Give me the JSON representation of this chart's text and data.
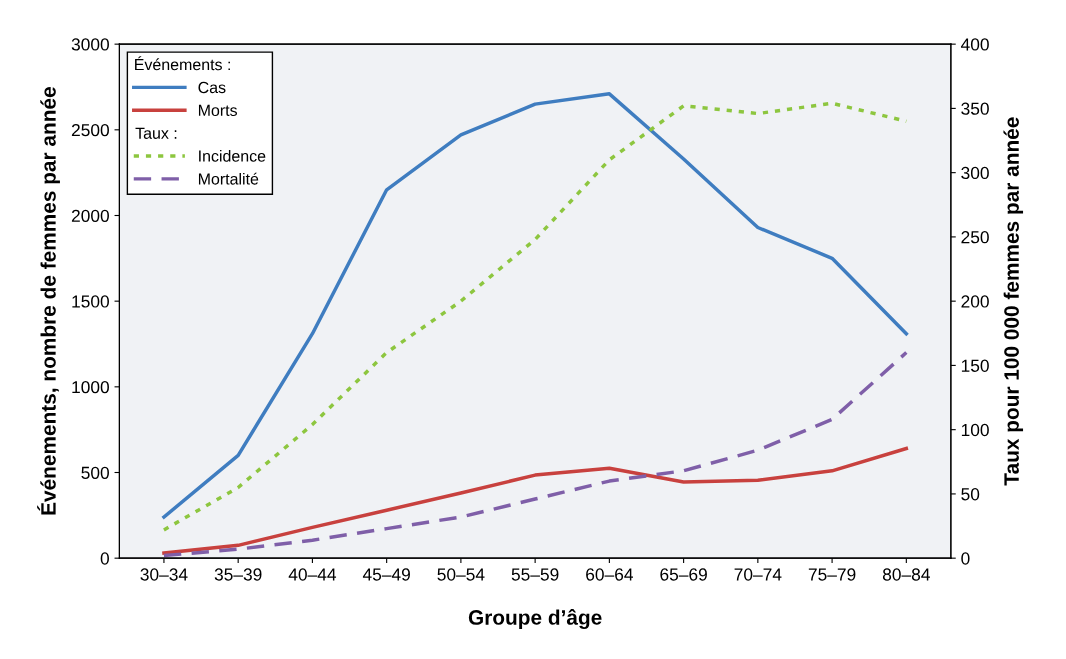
{
  "chart_data": {
    "type": "line",
    "xlabel": "Groupe d’âge",
    "ylabel": "Événements, nombre de femmes par année",
    "y2label": "Taux pour 100 000 femmes par année",
    "categories": [
      "30–34",
      "35–39",
      "40–44",
      "45–49",
      "50–54",
      "55–59",
      "60–64",
      "65–69",
      "70–74",
      "75–79",
      "80–84"
    ],
    "series": [
      {
        "name": "Cas",
        "color": "#3f7dc0",
        "line_style": "solid",
        "values": [
          240,
          600,
          1310,
          2150,
          2470,
          2650,
          2710,
          2330,
          1930,
          1750,
          1310
        ]
      },
      {
        "name": "Morts",
        "color": "#c8413e",
        "line_style": "solid",
        "values": [
          30,
          75,
          180,
          280,
          380,
          485,
          525,
          445,
          455,
          510,
          640
        ]
      },
      {
        "name": "Incidence",
        "color": "#8dc63f",
        "line_style": "dotted",
        "axis": "y2",
        "values": [
          22,
          55,
          104,
          160,
          200,
          248,
          310,
          352,
          346,
          354,
          340
        ]
      },
      {
        "name": "Mortalité",
        "color": "#7f5fa8",
        "line_style": "dashed",
        "axis": "y2",
        "values": [
          2,
          7,
          14,
          23,
          32,
          46,
          60,
          68,
          84,
          108,
          160
        ]
      }
    ],
    "legend_title": "Événements :",
    "annotations": [
      "Taux :"
    ],
    "legend": "top left",
    "grid": false,
    "marker": "none",
    "ylim": [
      0,
      3000
    ],
    "yticks": [
      0,
      500,
      1000,
      1500,
      2000,
      2500,
      3000
    ],
    "y2lim": [
      0,
      400
    ],
    "y2ticks": [
      0,
      50,
      100,
      150,
      200,
      250,
      300,
      350,
      400
    ]
  }
}
